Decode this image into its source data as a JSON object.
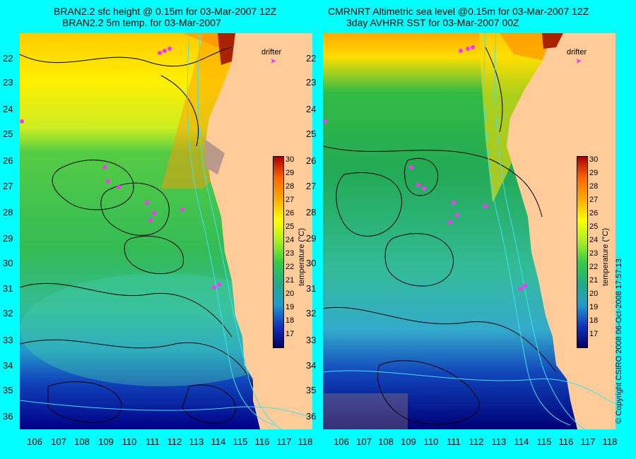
{
  "left": {
    "title_line1": "BRAN2.2 sfc height @ 0.15m for 03-Mar-2007 12Z",
    "title_line2": "BRAN2.2 5m temp. for 03-Mar-2007"
  },
  "right": {
    "title_line1": "CMRNRT Altimetric sea level  @0.15m  for 03-Mar-2007 12Z",
    "title_line2": "3day AVHRR SST for 03-Mar-2007 00Z"
  },
  "lat_labels": [
    "22",
    "23",
    "24",
    "25",
    "26",
    "27",
    "28",
    "29",
    "30",
    "31",
    "32",
    "33",
    "34",
    "35",
    "36"
  ],
  "lon_labels": [
    "106",
    "107",
    "108",
    "109",
    "110",
    "111",
    "112",
    "113",
    "114",
    "115",
    "116",
    "117",
    "118"
  ],
  "colorbar": {
    "title": "temperature (°C)",
    "ticks": [
      "30",
      "29",
      "28",
      "27",
      "26",
      "25",
      "24",
      "23",
      "22",
      "21",
      "20",
      "19",
      "18",
      "17"
    ]
  },
  "legend": {
    "drifter": "drifter"
  },
  "copyright": "© Copyright CSIRO 2008   06-Oct-2008 17:57:13",
  "colors": {
    "background": "#00ffff",
    "land": "#ffcc99",
    "contour": "#000000",
    "isobath": "#40e0f0",
    "drifter": "#ff33ff"
  },
  "icons": [
    "drifter-arrow-icon"
  ]
}
